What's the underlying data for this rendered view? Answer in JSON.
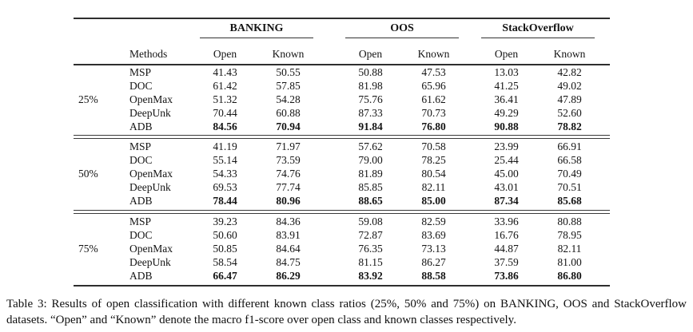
{
  "table": {
    "groups": [
      {
        "label": "BANKING"
      },
      {
        "label": "OOS"
      },
      {
        "label": "StackOverflow"
      }
    ],
    "methods_header": "Methods",
    "subcol_open": "Open",
    "subcol_known": "Known",
    "blocks": [
      {
        "ratio": "25%",
        "rows": [
          {
            "method": "MSP",
            "values": [
              "41.43",
              "50.55",
              "50.88",
              "47.53",
              "13.03",
              "42.82"
            ],
            "best": false
          },
          {
            "method": "DOC",
            "values": [
              "61.42",
              "57.85",
              "81.98",
              "65.96",
              "41.25",
              "49.02"
            ],
            "best": false
          },
          {
            "method": "OpenMax",
            "values": [
              "51.32",
              "54.28",
              "75.76",
              "61.62",
              "36.41",
              "47.89"
            ],
            "best": false
          },
          {
            "method": "DeepUnk",
            "values": [
              "70.44",
              "60.88",
              "87.33",
              "70.73",
              "49.29",
              "52.60"
            ],
            "best": false
          },
          {
            "method": "ADB",
            "values": [
              "84.56",
              "70.94",
              "91.84",
              "76.80",
              "90.88",
              "78.82"
            ],
            "best": true
          }
        ]
      },
      {
        "ratio": "50%",
        "rows": [
          {
            "method": "MSP",
            "values": [
              "41.19",
              "71.97",
              "57.62",
              "70.58",
              "23.99",
              "66.91"
            ],
            "best": false
          },
          {
            "method": "DOC",
            "values": [
              "55.14",
              "73.59",
              "79.00",
              "78.25",
              "25.44",
              "66.58"
            ],
            "best": false
          },
          {
            "method": "OpenMax",
            "values": [
              "54.33",
              "74.76",
              "81.89",
              "80.54",
              "45.00",
              "70.49"
            ],
            "best": false
          },
          {
            "method": "DeepUnk",
            "values": [
              "69.53",
              "77.74",
              "85.85",
              "82.11",
              "43.01",
              "70.51"
            ],
            "best": false
          },
          {
            "method": "ADB",
            "values": [
              "78.44",
              "80.96",
              "88.65",
              "85.00",
              "87.34",
              "85.68"
            ],
            "best": true
          }
        ]
      },
      {
        "ratio": "75%",
        "rows": [
          {
            "method": "MSP",
            "values": [
              "39.23",
              "84.36",
              "59.08",
              "82.59",
              "33.96",
              "80.88"
            ],
            "best": false
          },
          {
            "method": "DOC",
            "values": [
              "50.60",
              "83.91",
              "72.87",
              "83.69",
              "16.76",
              "78.95"
            ],
            "best": false
          },
          {
            "method": "OpenMax",
            "values": [
              "50.85",
              "84.64",
              "76.35",
              "73.13",
              "44.87",
              "82.11"
            ],
            "best": false
          },
          {
            "method": "DeepUnk",
            "values": [
              "58.54",
              "84.75",
              "81.15",
              "86.27",
              "37.59",
              "81.00"
            ],
            "best": false
          },
          {
            "method": "ADB",
            "values": [
              "66.47",
              "86.29",
              "83.92",
              "88.58",
              "73.86",
              "86.80"
            ],
            "best": true
          }
        ]
      }
    ]
  },
  "caption": {
    "text": "Table 3: Results of open classification with different known class ratios (25%, 50% and 75%) on BANKING, OOS and StackOverflow datasets. “Open” and “Known” denote the macro f1-score over open class and known classes respectively."
  }
}
